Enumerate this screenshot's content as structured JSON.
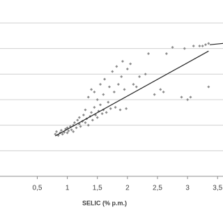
{
  "chart_data": {
    "type": "scatter",
    "x_label": "SELIC (% p.m.)",
    "xlim": [
      -0.12,
      3.59
    ],
    "ylim": [
      0,
      6.9
    ],
    "xticks": [
      {
        "value": 0.5,
        "label": "0,5"
      },
      1,
      {
        "value": 1.5,
        "label": "1,5"
      },
      2,
      {
        "value": 2.5,
        "label": "2,5"
      },
      3,
      {
        "value": 3.5,
        "label": "3,5"
      }
    ],
    "ygrid": [
      1,
      2,
      3,
      4,
      5,
      6
    ],
    "grid": true,
    "points": {
      "color": "#8c8c8c",
      "x": [
        0.8,
        0.82,
        0.85,
        0.88,
        0.9,
        0.92,
        0.95,
        0.97,
        1.0,
        1.0,
        1.02,
        1.05,
        1.07,
        1.1,
        1.1,
        1.12,
        1.15,
        1.17,
        1.2,
        1.2,
        1.22,
        1.25,
        1.27,
        1.3,
        1.3,
        1.32,
        1.35,
        1.35,
        1.38,
        1.4,
        1.4,
        1.42,
        1.45,
        1.45,
        1.47,
        1.5,
        1.5,
        1.52,
        1.55,
        1.55,
        1.58,
        1.6,
        1.6,
        1.62,
        1.65,
        1.68,
        1.7,
        1.72,
        1.75,
        1.78,
        1.8,
        1.82,
        1.85,
        1.88,
        1.9,
        1.92,
        1.95,
        1.98,
        2.0,
        2.05,
        2.1,
        2.15,
        2.2,
        2.3,
        2.35,
        2.45,
        2.55,
        2.6,
        2.65,
        2.75,
        2.9,
        2.95,
        3.0,
        3.05,
        3.1,
        3.2,
        3.25,
        3.3,
        3.35,
        3.35
      ],
      "y": [
        1.65,
        1.75,
        1.6,
        1.7,
        1.8,
        1.65,
        1.72,
        1.85,
        1.7,
        1.9,
        1.78,
        1.95,
        1.82,
        2.0,
        1.75,
        2.1,
        1.9,
        2.2,
        2.05,
        2.3,
        1.95,
        2.15,
        2.4,
        2.1,
        2.6,
        2.25,
        2.0,
        3.1,
        2.35,
        2.5,
        3.4,
        2.2,
        2.7,
        3.3,
        2.4,
        2.3,
        3.0,
        2.55,
        2.8,
        3.6,
        2.45,
        2.6,
        3.2,
        3.8,
        2.5,
        2.9,
        3.5,
        2.65,
        4.1,
        3.3,
        2.7,
        4.3,
        3.6,
        2.6,
        3.9,
        4.5,
        3.4,
        2.65,
        4.2,
        4.4,
        3.6,
        3.5,
        3.9,
        4.0,
        4.8,
        3.2,
        3.4,
        3.3,
        4.8,
        5.05,
        3.1,
        5.0,
        3.0,
        3.1,
        5.1,
        5.1,
        5.1,
        5.15,
        3.5,
        5.2
      ]
    },
    "lines": [
      {
        "color": "#222222",
        "x": [
          0.8,
          3.35
        ],
        "values": [
          1.58,
          4.9
        ]
      },
      {
        "color": "#222222",
        "x": [
          3.37,
          3.59
        ],
        "values": [
          5.15,
          5.2
        ]
      }
    ]
  }
}
